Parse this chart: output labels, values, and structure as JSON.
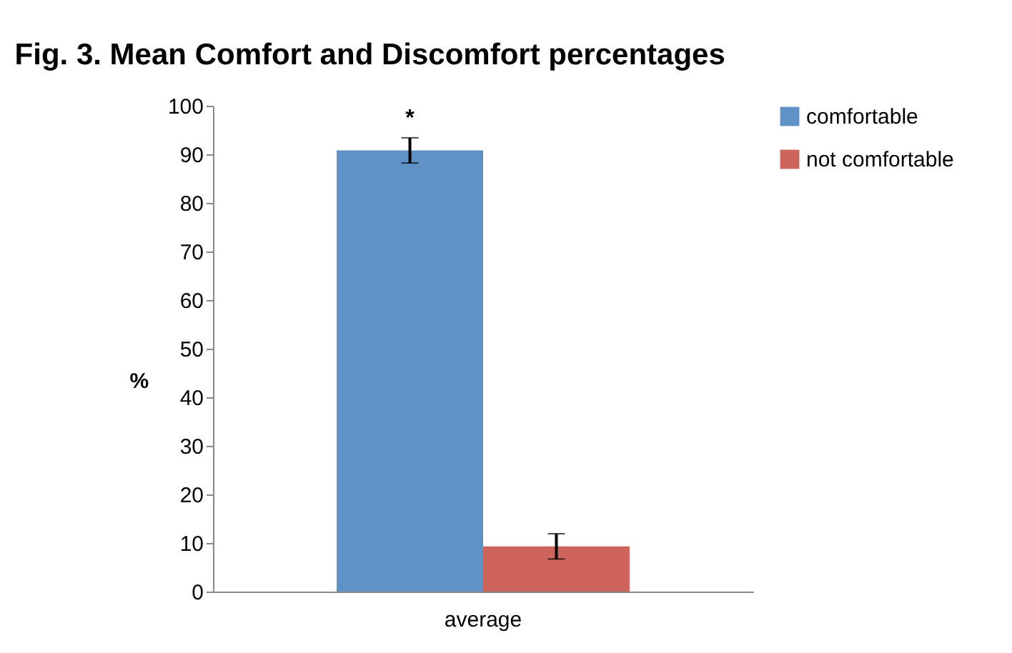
{
  "chart_data": {
    "type": "bar",
    "title": "Fig. 3. Mean Comfort and Discomfort percentages",
    "ylabel": "%",
    "categories": [
      "average"
    ],
    "series": [
      {
        "name": "comfortable",
        "color": "#5f93c8",
        "values": [
          90.8
        ],
        "errors": [
          2.6
        ]
      },
      {
        "name": "not comfortable",
        "color": "#cd655d",
        "values": [
          9.3
        ],
        "errors": [
          2.6
        ]
      }
    ],
    "annotations": [
      "*"
    ],
    "ylim": [
      0,
      100
    ],
    "yticks": [
      0,
      10,
      20,
      30,
      40,
      50,
      60,
      70,
      80,
      90,
      100
    ],
    "grid": false,
    "legend": "right"
  }
}
